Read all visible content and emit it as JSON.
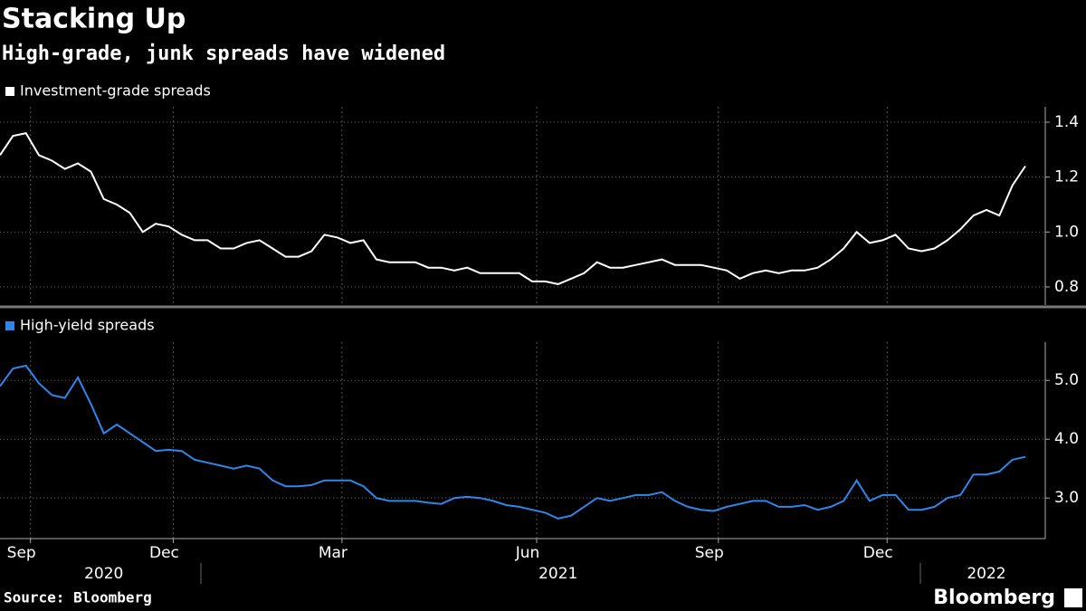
{
  "header": {
    "title": "Stacking Up",
    "subtitle": "High-grade, junk spreads have widened"
  },
  "chart_data": [
    {
      "type": "line",
      "series": [
        {
          "name": "Investment-grade spreads",
          "color": "#ffffff",
          "values": [
            1.28,
            1.35,
            1.36,
            1.28,
            1.26,
            1.23,
            1.25,
            1.22,
            1.12,
            1.1,
            1.07,
            1.0,
            1.03,
            1.02,
            0.99,
            0.97,
            0.97,
            0.94,
            0.94,
            0.96,
            0.97,
            0.94,
            0.91,
            0.91,
            0.93,
            0.99,
            0.98,
            0.96,
            0.97,
            0.9,
            0.89,
            0.89,
            0.89,
            0.87,
            0.87,
            0.86,
            0.87,
            0.85,
            0.85,
            0.85,
            0.85,
            0.82,
            0.82,
            0.81,
            0.83,
            0.85,
            0.89,
            0.87,
            0.87,
            0.88,
            0.89,
            0.9,
            0.88,
            0.88,
            0.88,
            0.87,
            0.86,
            0.83,
            0.85,
            0.86,
            0.85,
            0.86,
            0.86,
            0.87,
            0.9,
            0.94,
            1.0,
            0.96,
            0.97,
            0.99,
            0.94,
            0.93,
            0.94,
            0.97,
            1.01,
            1.06,
            1.08,
            1.06,
            1.17,
            1.24
          ]
        }
      ],
      "ylim": [
        0.734,
        1.456
      ],
      "yticks": [
        0.8,
        {
          "value": 1,
          "label": "1.0"
        },
        1.2,
        1.4
      ],
      "grid": true
    },
    {
      "type": "line",
      "series": [
        {
          "name": "High-yield spreads",
          "color": "#2f86eb",
          "values": [
            4.9,
            5.2,
            5.25,
            4.95,
            4.75,
            4.7,
            5.05,
            4.6,
            4.1,
            4.25,
            4.1,
            3.95,
            3.8,
            3.82,
            3.8,
            3.65,
            3.6,
            3.55,
            3.5,
            3.55,
            3.5,
            3.3,
            3.2,
            3.2,
            3.22,
            3.3,
            3.3,
            3.3,
            3.2,
            3.0,
            2.95,
            2.95,
            2.95,
            2.92,
            2.9,
            3.0,
            3.02,
            3.0,
            2.95,
            2.88,
            2.85,
            2.8,
            2.75,
            2.65,
            2.7,
            2.85,
            3.0,
            2.95,
            3.0,
            3.05,
            3.05,
            3.1,
            2.95,
            2.85,
            2.8,
            2.78,
            2.85,
            2.9,
            2.95,
            2.95,
            2.85,
            2.85,
            2.88,
            2.8,
            2.85,
            2.95,
            3.3,
            2.95,
            3.05,
            3.05,
            2.8,
            2.8,
            2.85,
            3.0,
            3.05,
            3.4,
            3.4,
            3.45,
            3.65,
            3.7
          ]
        }
      ],
      "ylim": [
        2.31,
        5.65
      ],
      "yticks": [
        {
          "value": 3,
          "label": "3.0"
        },
        {
          "value": 4,
          "label": "4.0"
        },
        {
          "value": 5,
          "label": "5.0"
        }
      ],
      "grid": true,
      "categories": [
        null,
        null,
        "Sep",
        null,
        null,
        null,
        null,
        null,
        null,
        null,
        null,
        null,
        null,
        "Dec",
        null,
        null,
        null,
        null,
        null,
        null,
        null,
        null,
        null,
        null,
        null,
        null,
        "Mar",
        null,
        null,
        null,
        null,
        null,
        null,
        null,
        null,
        null,
        null,
        null,
        null,
        null,
        null,
        "Jun",
        null,
        null,
        null,
        null,
        null,
        null,
        null,
        null,
        null,
        null,
        null,
        null,
        null,
        "Sep",
        null,
        null,
        null,
        null,
        null,
        null,
        null,
        null,
        null,
        null,
        null,
        null,
        "Dec",
        null,
        null,
        null,
        null,
        null,
        null,
        null,
        null,
        null,
        null,
        null
      ],
      "years": [
        null,
        null,
        null,
        null,
        null,
        null,
        null,
        null,
        "2020",
        null,
        null,
        null,
        null,
        null,
        null,
        null,
        null,
        null,
        null,
        null,
        null,
        null,
        null,
        null,
        null,
        null,
        null,
        null,
        null,
        null,
        null,
        null,
        null,
        null,
        null,
        null,
        null,
        null,
        null,
        null,
        null,
        null,
        null,
        "2021",
        null,
        null,
        null,
        null,
        null,
        null,
        null,
        null,
        null,
        null,
        null,
        null,
        null,
        null,
        null,
        null,
        null,
        null,
        null,
        null,
        null,
        null,
        null,
        null,
        null,
        null,
        null,
        null,
        null,
        null,
        null,
        null,
        "2022",
        null,
        null,
        null
      ]
    }
  ],
  "footer": {
    "source": "Source: Bloomberg",
    "brand": "Bloomberg"
  }
}
